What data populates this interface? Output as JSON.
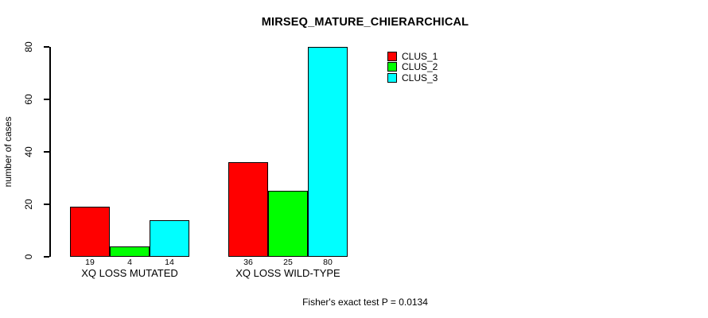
{
  "title": "MIRSEQ_MATURE_CHIERARCHICAL",
  "footer_note": "Fisher's exact test P = 0.0134",
  "colors": {
    "clus_1": "#ff0000",
    "clus_2": "#00ff00",
    "clus_3": "#00ffff",
    "axis": "#000000",
    "background": "#ffffff"
  },
  "chart_data": {
    "type": "bar",
    "title": "MIRSEQ_MATURE_CHIERARCHICAL",
    "xlabel": "",
    "ylabel": "number of cases",
    "ylim": [
      0,
      80
    ],
    "yticks": [
      0,
      20,
      40,
      60,
      80
    ],
    "grid": false,
    "legend_position": "top-right",
    "bar_borders": true,
    "categories": [
      "XQ LOSS MUTATED",
      "XQ LOSS WILD-TYPE"
    ],
    "series": [
      {
        "name": "CLUS_1",
        "color": "#ff0000",
        "values": [
          19,
          36
        ]
      },
      {
        "name": "CLUS_2",
        "color": "#00ff00",
        "values": [
          4,
          25
        ]
      },
      {
        "name": "CLUS_3",
        "color": "#00ffff",
        "values": [
          14,
          80
        ]
      }
    ],
    "bar_value_labels": [
      [
        19,
        4,
        14
      ],
      [
        36,
        25,
        80
      ]
    ],
    "annotation": "Fisher's exact test P = 0.0134"
  }
}
